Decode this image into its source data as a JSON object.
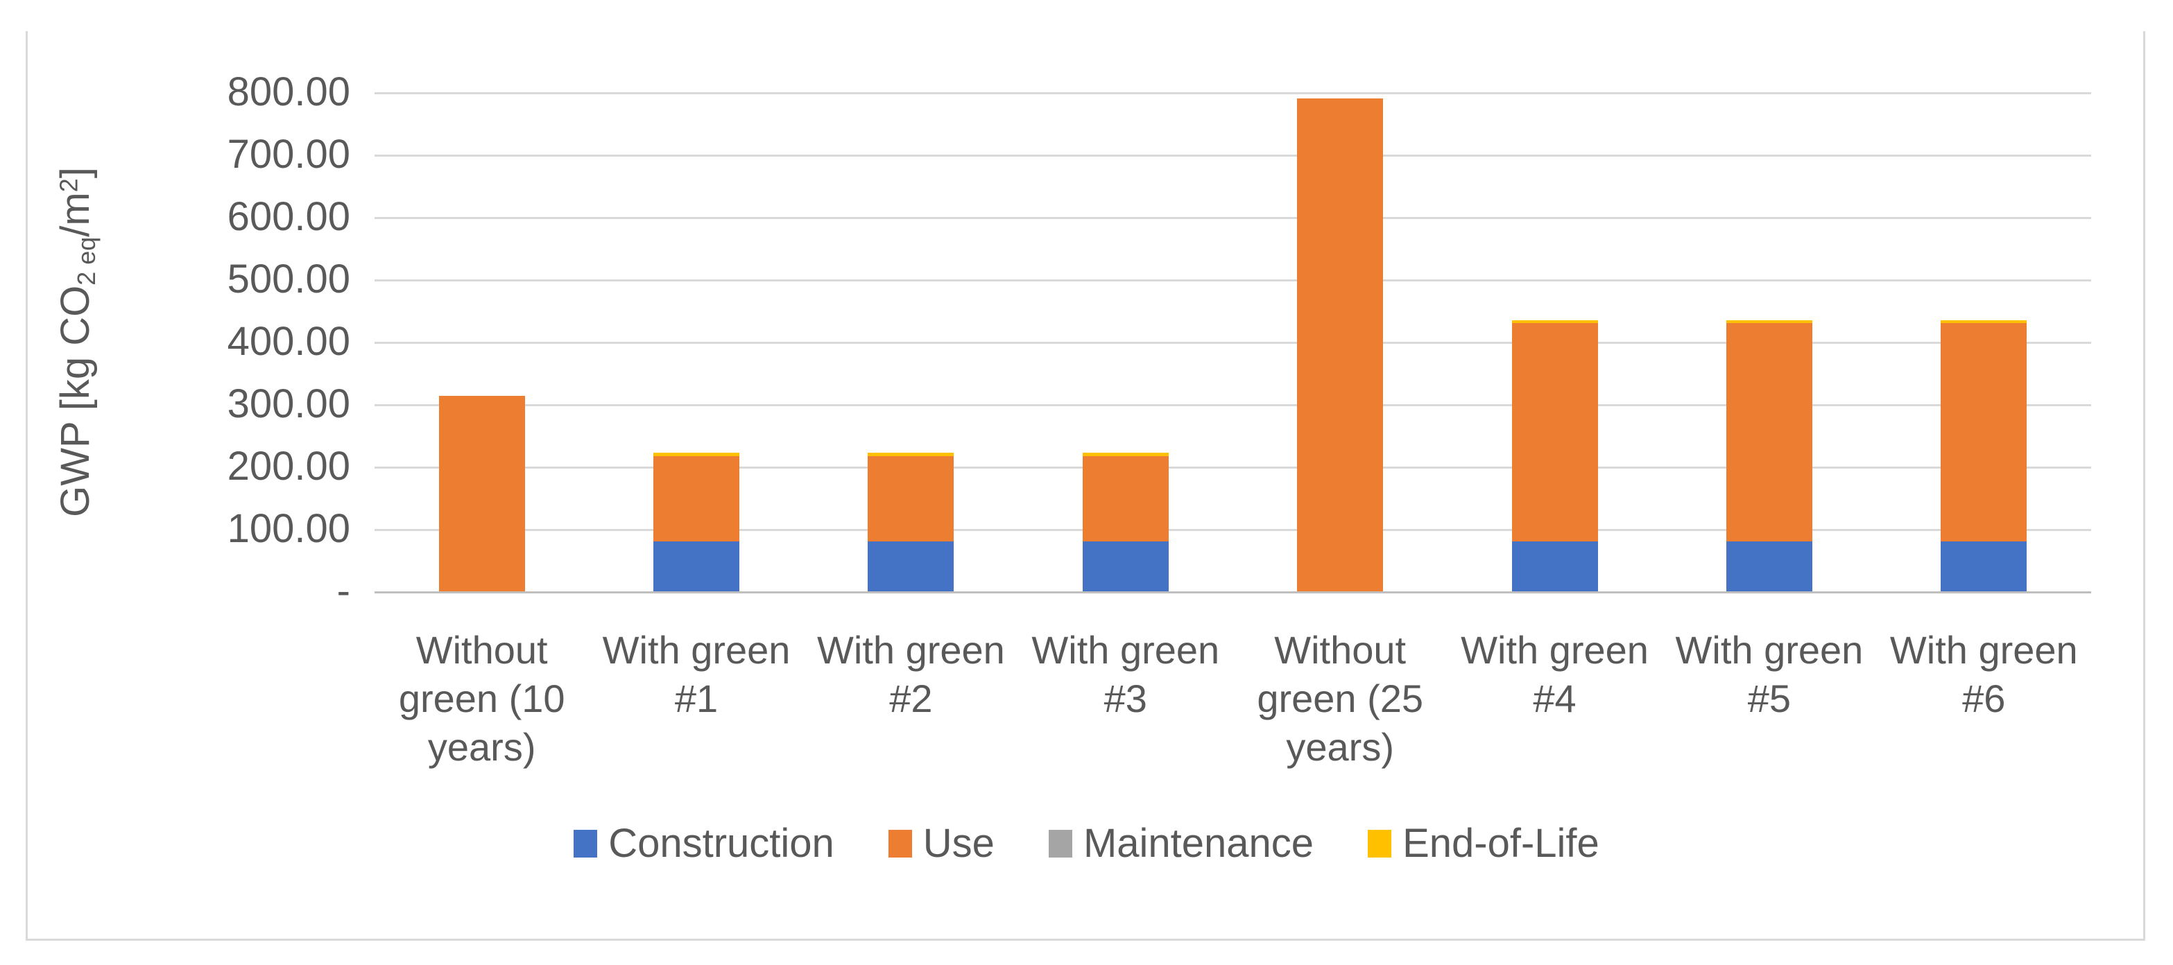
{
  "figure": {
    "background": "#ffffff",
    "frame_border_color": "#d9d9d9"
  },
  "chart_data": {
    "type": "bar",
    "stacked": true,
    "title": "",
    "ylabel_plain": "GWP [kg CO2 eq/m2]",
    "ylabel_rich": {
      "prefix": "GWP [kg CO",
      "sub": "2 eq",
      "mid": "/m",
      "sup": "2",
      "suffix": "]"
    },
    "ylim": [
      0,
      800
    ],
    "ytick_step": 100,
    "ytick_labels": [
      "-",
      "100.00",
      "200.00",
      "300.00",
      "400.00",
      "500.00",
      "600.00",
      "700.00",
      "800.00"
    ],
    "grid": true,
    "gridline_color": "#d9d9d9",
    "axis_line_color": "#bfbfbf",
    "text_color": "#595959",
    "legend_position": "bottom",
    "categories": [
      "Without green (10 years)",
      "With green #1",
      "With green #2",
      "With green #3",
      "Without green (25 years)",
      "With green #4",
      "With green #5",
      "With green #6"
    ],
    "series": [
      {
        "name": "Construction",
        "color": "#4472C4",
        "values": [
          0,
          80,
          80,
          80,
          0,
          80,
          80,
          80
        ]
      },
      {
        "name": "Use",
        "color": "#ED7D31",
        "values": [
          313,
          137,
          137,
          137,
          790,
          350,
          350,
          350
        ]
      },
      {
        "name": "Maintenance",
        "color": "#A5A5A5",
        "values": [
          0,
          0,
          0,
          0,
          0,
          0,
          0,
          0
        ]
      },
      {
        "name": "End-of-Life",
        "color": "#FFC000",
        "values": [
          0,
          5,
          5,
          5,
          0,
          5,
          5,
          5
        ]
      }
    ]
  }
}
